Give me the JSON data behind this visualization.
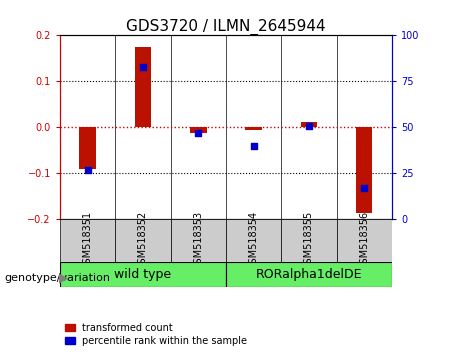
{
  "title": "GDS3720 / ILMN_2645944",
  "samples": [
    "GSM518351",
    "GSM518352",
    "GSM518353",
    "GSM518354",
    "GSM518355",
    "GSM518356"
  ],
  "red_values": [
    -0.09,
    0.175,
    -0.012,
    -0.005,
    0.012,
    -0.185
  ],
  "blue_values_pct": [
    27,
    83,
    47,
    40,
    51,
    17
  ],
  "group_bg_color": "#66ee66",
  "ylim_left": [
    -0.2,
    0.2
  ],
  "ylim_right": [
    0,
    100
  ],
  "yticks_left": [
    -0.2,
    -0.1,
    0,
    0.1,
    0.2
  ],
  "yticks_right": [
    0,
    25,
    50,
    75,
    100
  ],
  "left_axis_color": "#cc0000",
  "right_axis_color": "#0000cc",
  "zero_line_color": "#cc0000",
  "bar_color": "#bb1100",
  "dot_color": "#0000cc",
  "dot_size": 18,
  "bar_width": 0.3,
  "genotype_label": "genotype/variation",
  "legend_red": "transformed count",
  "legend_blue": "percentile rank within the sample",
  "title_fontsize": 11,
  "tick_fontsize": 7,
  "label_fontsize": 8,
  "sample_label_fontsize": 7,
  "group_label_fontsize": 9
}
